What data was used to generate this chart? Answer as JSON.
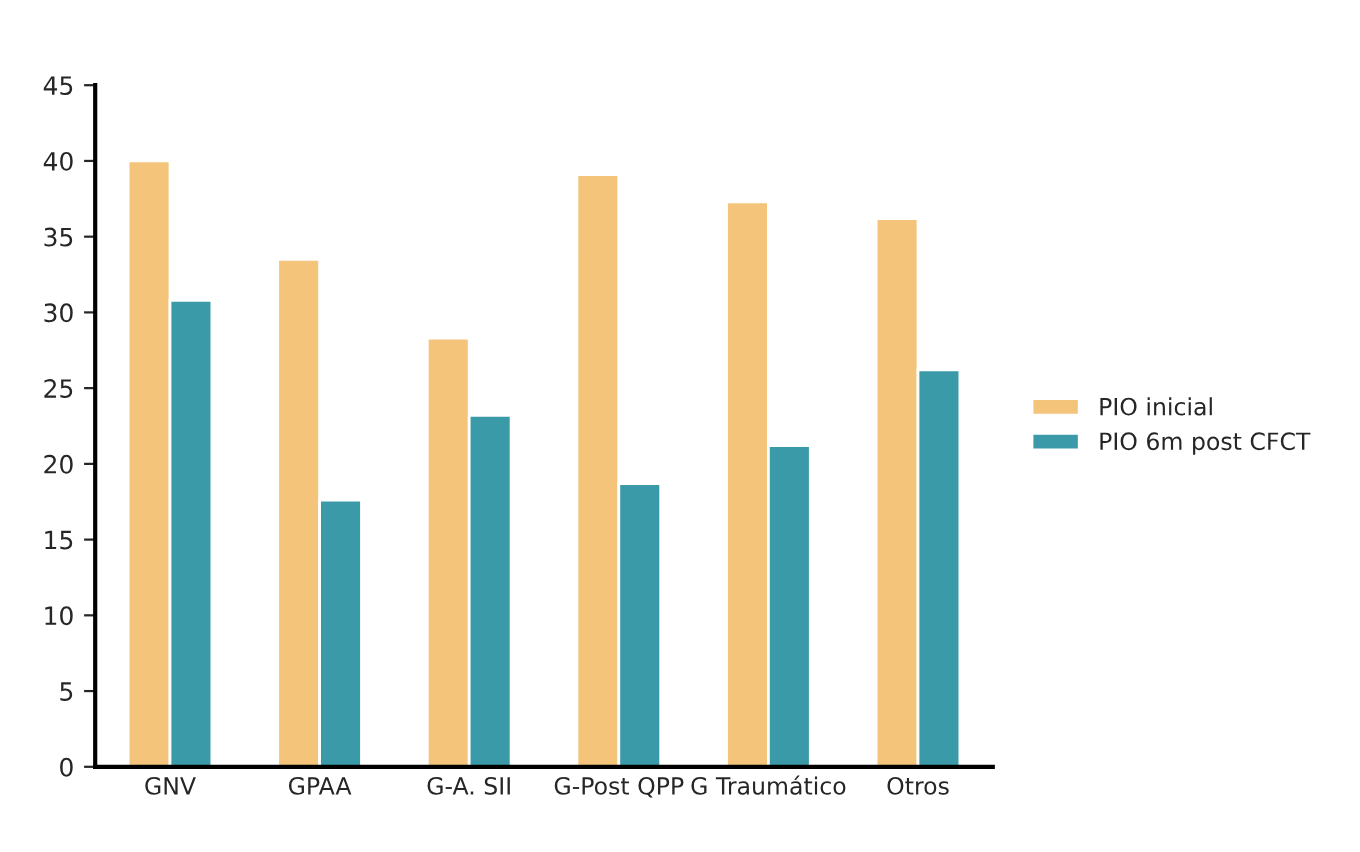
{
  "chart_data": {
    "type": "bar",
    "categories": [
      "GNV",
      "GPAA",
      "G-A. SII",
      "G-Post QPP",
      "G Traumático",
      "Otros"
    ],
    "series": [
      {
        "name": "PIO inicial",
        "color": "#f3c47a",
        "values": [
          40.0,
          33.5,
          28.3,
          39.1,
          37.3,
          36.2
        ]
      },
      {
        "name": "PIO 6m post CFCT",
        "color": "#3a9aa8",
        "values": [
          30.8,
          17.6,
          23.2,
          18.7,
          21.2,
          26.2
        ]
      }
    ],
    "ylim": [
      0,
      45
    ],
    "yticks": [
      0,
      5,
      10,
      15,
      20,
      25,
      30,
      35,
      40,
      45
    ],
    "grid": false,
    "legend": "right"
  }
}
